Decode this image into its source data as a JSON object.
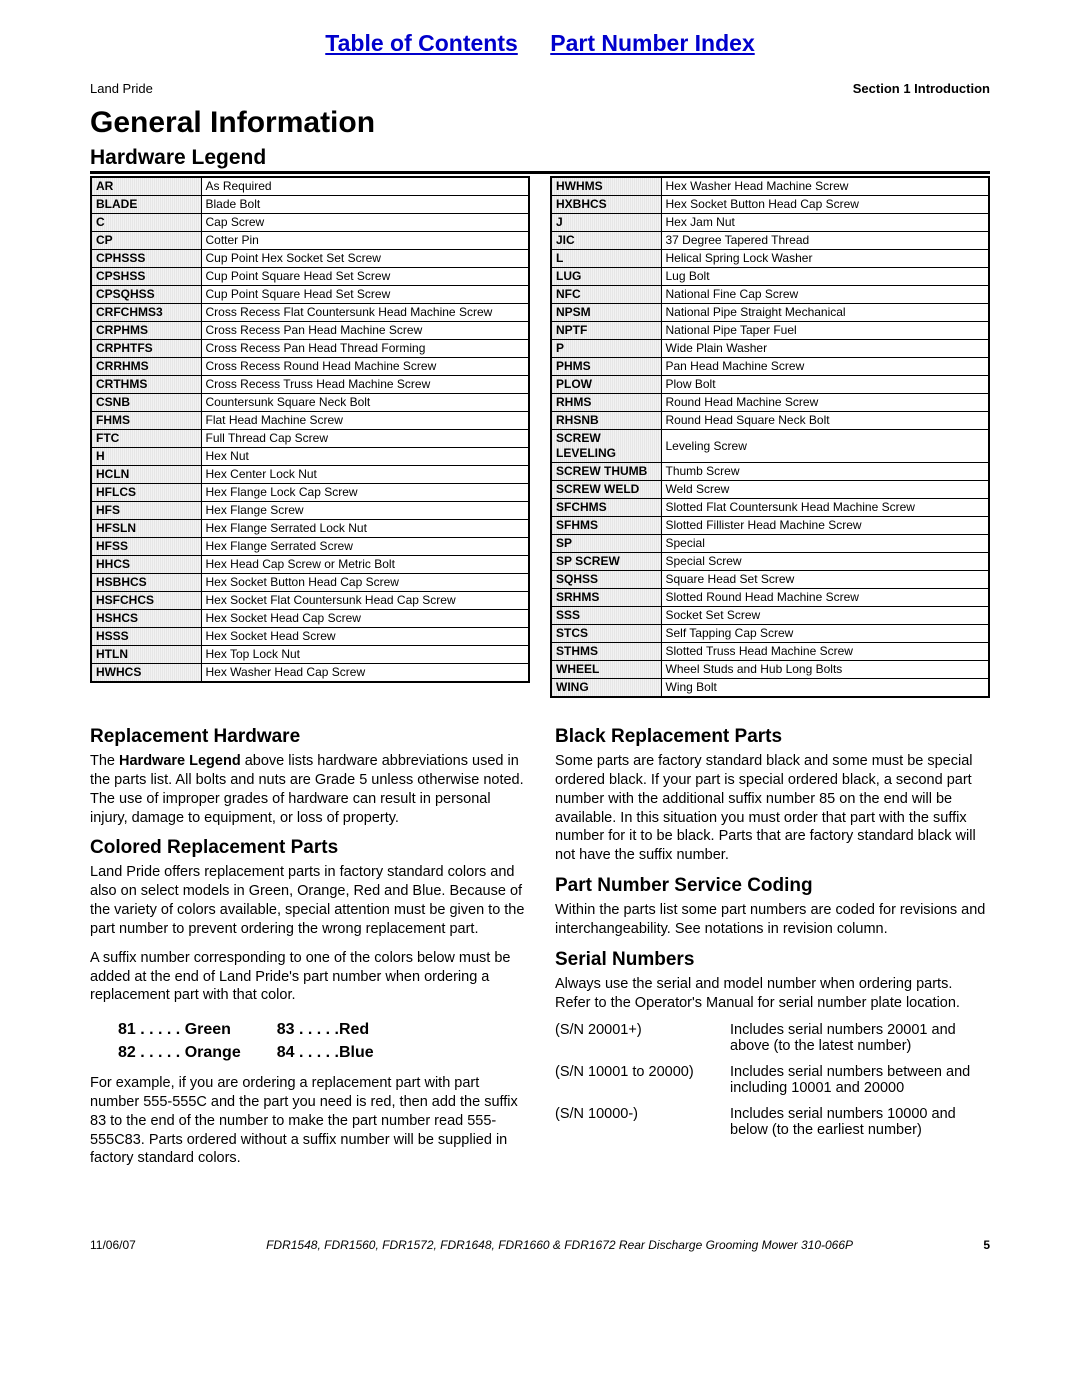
{
  "top_links": {
    "toc": "Table of Contents",
    "pni": "Part Number Index"
  },
  "header": {
    "left": "Land Pride",
    "right": "Section 1   Introduction"
  },
  "title": "General Information",
  "legend_heading": "Hardware Legend",
  "legend_left": [
    [
      "AR",
      "As Required"
    ],
    [
      "BLADE",
      "Blade Bolt"
    ],
    [
      "C",
      "Cap Screw"
    ],
    [
      "CP",
      "Cotter Pin"
    ],
    [
      "CPHSSS",
      "Cup Point Hex Socket Set Screw"
    ],
    [
      "CPSHSS",
      "Cup Point Square Head Set Screw"
    ],
    [
      "CPSQHSS",
      "Cup Point Square Head Set Screw"
    ],
    [
      "CRFCHMS3",
      "Cross Recess Flat Countersunk Head Machine Screw"
    ],
    [
      "CRPHMS",
      "Cross Recess Pan Head Machine Screw"
    ],
    [
      "CRPHTFS",
      "Cross Recess Pan Head Thread Forming"
    ],
    [
      "CRRHMS",
      "Cross Recess Round Head Machine Screw"
    ],
    [
      "CRTHMS",
      "Cross Recess Truss Head Machine Screw"
    ],
    [
      "CSNB",
      "Countersunk Square Neck Bolt"
    ],
    [
      "FHMS",
      "Flat Head Machine Screw"
    ],
    [
      "FTC",
      "Full Thread Cap Screw"
    ],
    [
      "H",
      "Hex Nut"
    ],
    [
      "HCLN",
      "Hex Center Lock Nut"
    ],
    [
      "HFLCS",
      "Hex Flange Lock Cap Screw"
    ],
    [
      "HFS",
      "Hex Flange Screw"
    ],
    [
      "HFSLN",
      "Hex Flange Serrated Lock Nut"
    ],
    [
      "HFSS",
      "Hex Flange Serrated Screw"
    ],
    [
      "HHCS",
      "Hex Head Cap Screw or Metric Bolt"
    ],
    [
      "HSBHCS",
      "Hex Socket Button Head Cap Screw"
    ],
    [
      "HSFCHCS",
      "Hex Socket Flat Countersunk Head Cap Screw"
    ],
    [
      "HSHCS",
      "Hex Socket Head Cap Screw"
    ],
    [
      "HSSS",
      "Hex Socket Head Screw"
    ],
    [
      "HTLN",
      "Hex Top Lock Nut"
    ],
    [
      "HWHCS",
      "Hex Washer Head Cap Screw"
    ]
  ],
  "legend_right": [
    [
      "HWHMS",
      "Hex Washer Head Machine Screw"
    ],
    [
      "HXBHCS",
      "Hex Socket Button Head Cap Screw"
    ],
    [
      "J",
      "Hex Jam Nut"
    ],
    [
      "JIC",
      "37 Degree Tapered Thread"
    ],
    [
      "L",
      "Helical Spring Lock Washer"
    ],
    [
      "LUG",
      "Lug Bolt"
    ],
    [
      "NFC",
      "National Fine Cap Screw"
    ],
    [
      "NPSM",
      "National Pipe Straight Mechanical"
    ],
    [
      "NPTF",
      "National Pipe Taper Fuel"
    ],
    [
      "P",
      "Wide Plain Washer"
    ],
    [
      "PHMS",
      "Pan Head Machine Screw"
    ],
    [
      "PLOW",
      "Plow Bolt"
    ],
    [
      "RHMS",
      "Round Head Machine Screw"
    ],
    [
      "RHSNB",
      "Round Head Square Neck Bolt"
    ],
    [
      "SCREW LEVELING",
      "Leveling Screw"
    ],
    [
      "SCREW THUMB",
      "Thumb Screw"
    ],
    [
      "SCREW WELD",
      "Weld Screw"
    ],
    [
      "SFCHMS",
      "Slotted Flat Countersunk Head Machine Screw"
    ],
    [
      "SFHMS",
      "Slotted Fillister Head Machine Screw"
    ],
    [
      "SP",
      "Special"
    ],
    [
      "SP SCREW",
      "Special Screw"
    ],
    [
      "SQHSS",
      "Square Head Set Screw"
    ],
    [
      "SRHMS",
      "Slotted Round Head Machine Screw"
    ],
    [
      "SSS",
      "Socket Set Screw"
    ],
    [
      "STCS",
      "Self Tapping Cap Screw"
    ],
    [
      "STHMS",
      "Slotted Truss Head Machine Screw"
    ],
    [
      "WHEEL",
      "Wheel Studs and Hub Long Bolts"
    ],
    [
      "WING",
      "Wing Bolt"
    ]
  ],
  "sections": {
    "replacement_hw": {
      "heading": "Replacement Hardware",
      "p1a": "The ",
      "p1b": "Hardware Legend",
      "p1c": " above lists hardware abbreviations used in the parts list. All bolts and nuts are Grade 5 unless otherwise noted. The use of improper grades of hardware can result in personal injury, damage to equipment, or loss of property."
    },
    "colored": {
      "heading": "Colored Replacement Parts",
      "p1": "Land Pride offers replacement parts in factory standard colors and also on select models in Green, Orange, Red and Blue. Because of the variety of colors available, special attention must be given to the part number to prevent ordering the wrong replacement part.",
      "p2": "A suffix number corresponding to one of the colors below must be added at the end of Land Pride's part number when ordering a replacement part with that color.",
      "codes": [
        {
          "num": "81",
          "dots": " . . . . . ",
          "name": "Green"
        },
        {
          "num": "82",
          "dots": " . . . . . ",
          "name": "Orange"
        },
        {
          "num": "83",
          "dots": " . . . . .",
          "name": "Red"
        },
        {
          "num": "84",
          "dots": " . . . . .",
          "name": "Blue"
        }
      ],
      "p3": "For example, if you are ordering a replacement part with part number 555-555C and the part you need is red, then add the suffix 83 to the end of the number to make the part number read 555-555C83. Parts ordered without a suffix number will be supplied in factory standard colors."
    },
    "black": {
      "heading": "Black Replacement Parts",
      "p1": "Some parts are factory standard black and some must be special ordered black. If your part is special ordered black, a second part number with the additional suffix number 85 on the end will be available. In this situation you must order that part with the suffix number for it to be black. Parts that are factory standard black will not have the suffix number."
    },
    "coding": {
      "heading": "Part Number Service Coding",
      "p1": "Within the parts list some part numbers are coded for revisions and interchangeability. See notations in revision column."
    },
    "serial": {
      "heading": "Serial Numbers",
      "p1": "Always use the serial and model number when ordering parts. Refer to the Operator's Manual for serial number plate location.",
      "rows": [
        {
          "k": "(S/N 20001+)",
          "v": "Includes serial numbers 20001 and above (to the latest number)"
        },
        {
          "k": "(S/N 10001 to 20000)",
          "v": "Includes serial numbers between and including 10001 and 20000"
        },
        {
          "k": "(S/N 10000-)",
          "v": "Includes serial numbers 10000 and below (to the earliest number)"
        }
      ]
    }
  },
  "footer": {
    "date": "11/06/07",
    "mid": "FDR1548, FDR1560, FDR1572, FDR1648, FDR1660 & FDR1672 Rear Discharge Grooming Mower 310-066P",
    "page": "5"
  }
}
